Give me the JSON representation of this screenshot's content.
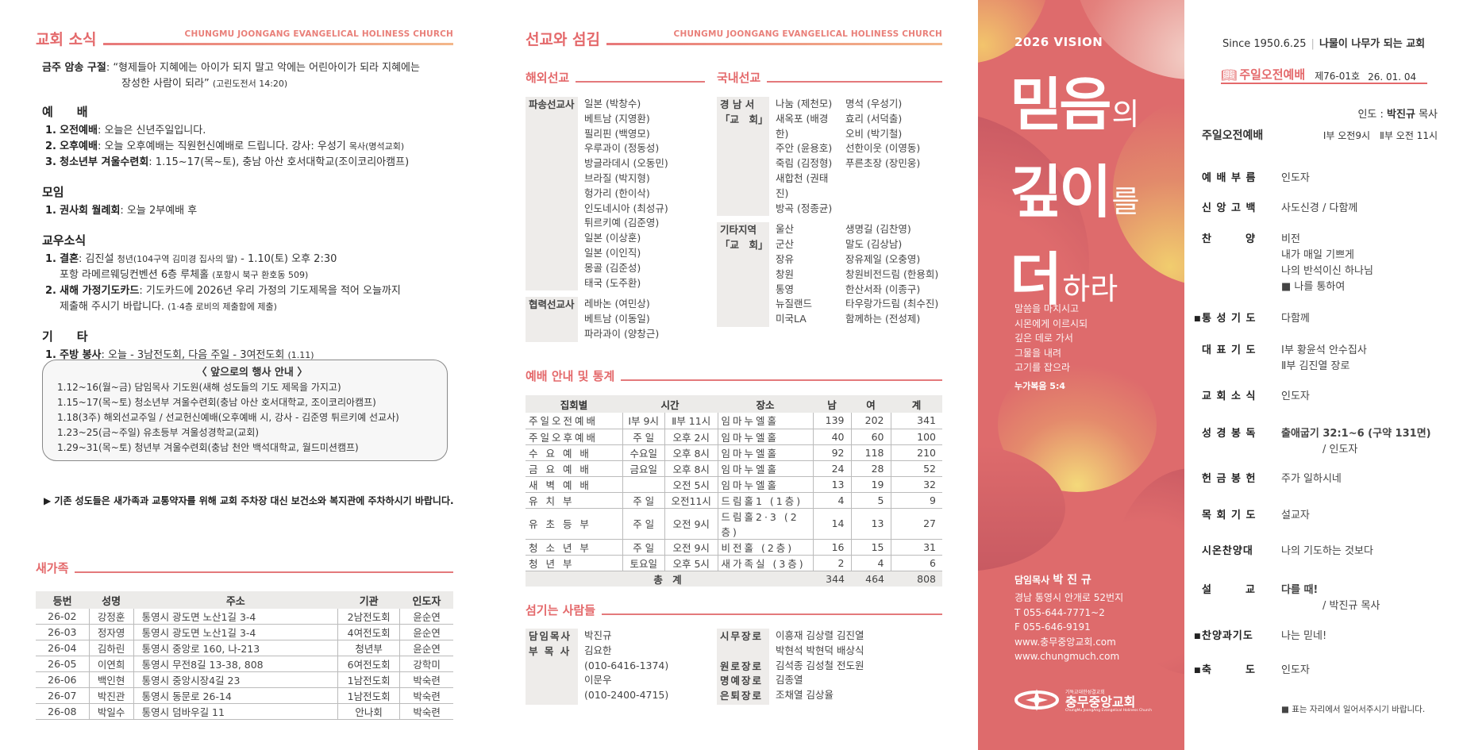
{
  "left": {
    "title": "교회 소식",
    "church_en": "CHUNGMU JOONGANG EVANGELICAL HOLINESS CHURCH",
    "verse": {
      "label": "금주 암송 구절",
      "line1": ": “형제들아 지혜에는 아이가 되지 말고 악에는 어린아이가 되라 지혜에는",
      "line2": "장성한 사람이 되라”",
      "ref": "(고린도전서 14:20)"
    },
    "sections": [
      {
        "heading": "예　　배",
        "items": [
          {
            "num": "1.",
            "label": "오전예배",
            "text": ": 오늘은 신년주일입니다."
          },
          {
            "num": "2.",
            "label": "오후예배",
            "text": ": 오늘 오후예배는 직원헌신예배로 드립니다. 강사: 우성기",
            "small": "목사(명석교회)"
          },
          {
            "num": "3.",
            "label": "청소년부 겨울수련회",
            "text": ": 1.15~17(목~토), 충남 아산 호서대학교(조이코리아캠프)"
          }
        ]
      },
      {
        "heading": "모임",
        "items": [
          {
            "num": "1.",
            "label": "권사회 월례회",
            "text": ": 오늘 2부예배 후"
          }
        ]
      },
      {
        "heading": "교우소식",
        "items": [
          {
            "num": "1.",
            "label": "결혼",
            "text": ": 김진설",
            "small": "청년(104구역 김미경 집사의 딸)",
            "text2": " - 1.10(토) 오후 2:30",
            "cont": "포항 라메르웨딩컨벤션 6층 루체홀",
            "cont_small": "(포항시 북구 환호동 509)"
          },
          {
            "num": "2.",
            "label": "새해 가정기도카드",
            "text": ": 기도카드에 2026년 우리 가정의 기도제목을 적어 오늘까지",
            "cont": "제출해 주시기 바랍니다.",
            "cont_small": "(1·4층 로비의 제출함에 제출)"
          }
        ]
      },
      {
        "heading": "기　　타",
        "items": [
          {
            "num": "1.",
            "label": "주방 봉사",
            "text": ": 오늘 - 3남전도회,  다음 주일 - 3여전도회",
            "small": "(1.11)"
          }
        ]
      }
    ],
    "events": {
      "title": "〈 앞으로의 행사 안내 〉",
      "items": [
        "1.12~16(월~금)  담임목사 기도원(새해 성도들의 기도 제목을 가지고)",
        "1.15~17(목~토)  청소년부 겨울수련회(충남 아산 호서대학교, 조이코리아캠프)",
        "1.18(3주)  해외선교주일 / 선교헌신예배(오후예배 시, 강사 - 김준영 튀르키예 선교사)",
        "1.23~25(금~주일)  유초등부 겨울성경학교(교회)",
        "1.29~31(목~토)  청년부 겨울수련회(충남 천안 백석대학교, 월드미션캠프)"
      ]
    },
    "notice": "▶ 기존 성도들은 새가족과 교통약자를 위해 교회 주차장 대신 보건소와 복지관에 주차하시기 바랍니다.",
    "newfamily": {
      "title": "새가족",
      "headers": [
        "등번",
        "성명",
        "주소",
        "기관",
        "인도자"
      ],
      "rows": [
        [
          "26-02",
          "강정훈",
          "통영시 광도면 노산1길 3-4",
          "2남전도회",
          "윤순연"
        ],
        [
          "26-03",
          "정자영",
          "통영시 광도면 노산1길 3-4",
          "4여전도회",
          "윤순연"
        ],
        [
          "26-04",
          "김하린",
          "통영시 중앙로 160, 나-213",
          "청년부",
          "윤순연"
        ],
        [
          "26-05",
          "이연희",
          "통영시 무전8길 13-38, 808",
          "6여전도회",
          "강학미"
        ],
        [
          "26-06",
          "백인현",
          "통영시 중앙시장4길 23",
          "1남전도회",
          "박숙련"
        ],
        [
          "26-07",
          "박진관",
          "통영시 동문로 26-14",
          "1남전도회",
          "박숙련"
        ],
        [
          "26-08",
          "박일수",
          "통영시 덤바우길 11",
          "안나회",
          "박숙련"
        ]
      ]
    }
  },
  "middle": {
    "title": "선교와 섬김",
    "church_en": "CHUNGMU JOONGANG EVANGELICAL HOLINESS CHURCH",
    "overseas": {
      "title": "해외선교",
      "groups": [
        {
          "label": "파송선교사",
          "items": [
            "일본 (박창수)",
            "베트남 (지영환)",
            "필리핀 (백영모)",
            "우루과이 (정동성)",
            "방글라데시 (오동민)",
            "브라질 (박지형)",
            "헝가리 (한이삭)",
            "인도네시아 (최성규)",
            "튀르키예 (김준영)",
            "일본 (이상훈)",
            "일본 (이인직)",
            "몽골 (김준성)",
            "태국 (도주환)"
          ]
        },
        {
          "label": "협력선교사",
          "items": [
            "레바논 (여민상)",
            "베트남 (이동일)",
            "파라과이 (양창근)"
          ]
        }
      ]
    },
    "domestic": {
      "title": "국내선교",
      "groups": [
        {
          "label1": "경 남 서",
          "label2": "「교　회」",
          "col1": [
            "나눔 (제천모)",
            "새옥포 (배경한)",
            "주안 (윤용호)",
            "죽림 (김정형)",
            "새합천 (권태진)",
            "방곡 (정종균)"
          ],
          "col2": [
            "명석 (우성기)",
            "효리 (서덕출)",
            "오비 (박기철)",
            "선한이웃 (이영동)",
            "푸른초장 (장민웅)"
          ]
        },
        {
          "label1": "기타지역",
          "label2": "「교　회」",
          "col1": [
            "울산",
            "군산",
            "장유",
            "창원",
            "통영",
            "뉴질랜드",
            "미국LA"
          ],
          "col2": [
            "생명길 (김찬영)",
            "말도 (김상남)",
            "장유제일 (오충영)",
            "창원비전드림 (한용희)",
            "한산서좌 (이종구)",
            "타우랑가드림 (최수진)",
            "함께하는 (전성제)"
          ]
        }
      ]
    },
    "worship": {
      "title": "예배 안내 및 통계",
      "headers": [
        "집회별",
        "시간",
        "장소",
        "남",
        "여",
        "계"
      ],
      "rows": [
        [
          "주일오전예배",
          "Ⅰ부 9시",
          "Ⅱ부 11시",
          "임마누엘홀",
          "139",
          "202",
          "341"
        ],
        [
          "주일오후예배",
          "주 일",
          "오후 2시",
          "임마누엘홀",
          "40",
          "60",
          "100"
        ],
        [
          "수 요 예 배",
          "수요일",
          "오후 8시",
          "임마누엘홀",
          "92",
          "118",
          "210"
        ],
        [
          "금 요 예 배",
          "금요일",
          "오후 8시",
          "임마누엘홀",
          "24",
          "28",
          "52"
        ],
        [
          "새 벽 예 배",
          "",
          "오전 5시",
          "임마누엘홀",
          "13",
          "19",
          "32"
        ],
        [
          "유 치 부",
          "주 일",
          "오전11시",
          "드림홀1 (1층)",
          "4",
          "5",
          "9"
        ],
        [
          "유 초 등 부",
          "주 일",
          "오전 9시",
          "드림홀2·3 (2층)",
          "14",
          "13",
          "27"
        ],
        [
          "청 소 년 부",
          "주 일",
          "오전 9시",
          "비전홀 (2층)",
          "16",
          "15",
          "31"
        ],
        [
          "청 년 부",
          "토요일",
          "오후 5시",
          "새가족실 (3층)",
          "2",
          "4",
          "6"
        ]
      ],
      "total": {
        "label": "총 계",
        "male": "344",
        "female": "464",
        "sum": "808"
      }
    },
    "servants": {
      "title": "섬기는 사람들",
      "left": [
        {
          "label": "담임목사",
          "lines": [
            "박진규"
          ]
        },
        {
          "label": "부 목 사",
          "lines": [
            "김요한",
            "(010-6416-1374)",
            "이문우",
            "(010-2400-4715)"
          ]
        }
      ],
      "right": [
        {
          "label": "시무장로",
          "lines": [
            "이흥재  김상렬  김진열",
            "박현석  박현덕  배상식"
          ]
        },
        {
          "label": "원로장로",
          "lines": [
            "김석종  김성철  전도원"
          ]
        },
        {
          "label": "명예장로",
          "lines": [
            "김종열"
          ]
        },
        {
          "label": "은퇴장로",
          "lines": [
            "조채열  김상율"
          ]
        }
      ]
    }
  },
  "cover": {
    "vision": "2026 VISION",
    "title_parts": [
      [
        "믿음",
        "의"
      ],
      [
        "깊이",
        "를"
      ],
      [
        "더",
        "하라"
      ]
    ],
    "verse_lines": [
      "말씀을 마치시고",
      "시몬에게 이르시되",
      "깊은 데로 가서",
      "그물을 내려",
      "고기를 잡으라"
    ],
    "verse_ref": "누가복음 5:4",
    "pastor_label": "담임목사",
    "pastor_name": "박 진 규",
    "address": "경남 통영시 안개로 52번지",
    "tel": "T 055-644-7771~2",
    "fax": "F 055-646-9191",
    "web1": "www.충무중앙교회.com",
    "web2": "www.chungmuch.com",
    "logo_small": "기독교대한성결교회",
    "logo_name": "충무중앙교회",
    "logo_en": "ChungMu JoongAng Evangelical Holiness Church",
    "bg": "#de6b6c"
  },
  "order": {
    "since": "Since 1950.6.25",
    "motto": "나물이 나무가 되는 교회",
    "service": "주일오전예배",
    "issue": "제76-01호",
    "date": "26. 01. 04",
    "leader_label": "인도 :",
    "leader_name": "박진규",
    "leader_title": "목사",
    "main_label": "주일오전예배",
    "main_times": "Ⅰ부 오전9시　Ⅱ부 오전 11시",
    "items": [
      {
        "label": "예 배 부 름",
        "lines": [
          "인도자"
        ]
      },
      {
        "label": "신 앙 고 백",
        "lines": [
          "사도신경 / 다함께"
        ]
      },
      {
        "label": "찬　　　양",
        "lines": [
          "비전",
          "내가 매일 기쁘게",
          "나의 반석이신 하나님",
          "■ 나를 통하여"
        ]
      },
      {
        "label": "통 성 기 도",
        "bullet": true,
        "lines": [
          "다함께"
        ]
      },
      {
        "label": "대 표 기 도",
        "lines": [
          "Ⅰ부  황윤석 안수집사",
          "Ⅱ부  김진열 장로"
        ]
      },
      {
        "label": "교 회 소 식",
        "lines": [
          "인도자"
        ]
      },
      {
        "label": "성 경 봉 독",
        "lines": [
          "출애굽기 32:1~6 (구약 131면)",
          "　　　　/ 인도자"
        ]
      },
      {
        "label": "헌 금 봉 헌",
        "lines": [
          "주가 일하시네"
        ]
      },
      {
        "label": "목 회 기 도",
        "lines": [
          "설교자"
        ]
      },
      {
        "label": "시온찬양대",
        "lines": [
          "나의 기도하는 것보다"
        ]
      },
      {
        "label": "설　　　교",
        "lines": [
          "다를 때!",
          "　　　　/ 박진규 목사"
        ]
      },
      {
        "label": "찬양과기도",
        "bullet": true,
        "lines": [
          "나는 믿네!"
        ]
      },
      {
        "label": "축　　　도",
        "bullet": true,
        "lines": [
          "인도자"
        ]
      }
    ],
    "footnote": "■ 표는 자리에서 일어서주시기 바랍니다.",
    "accent": "#e4696b"
  }
}
